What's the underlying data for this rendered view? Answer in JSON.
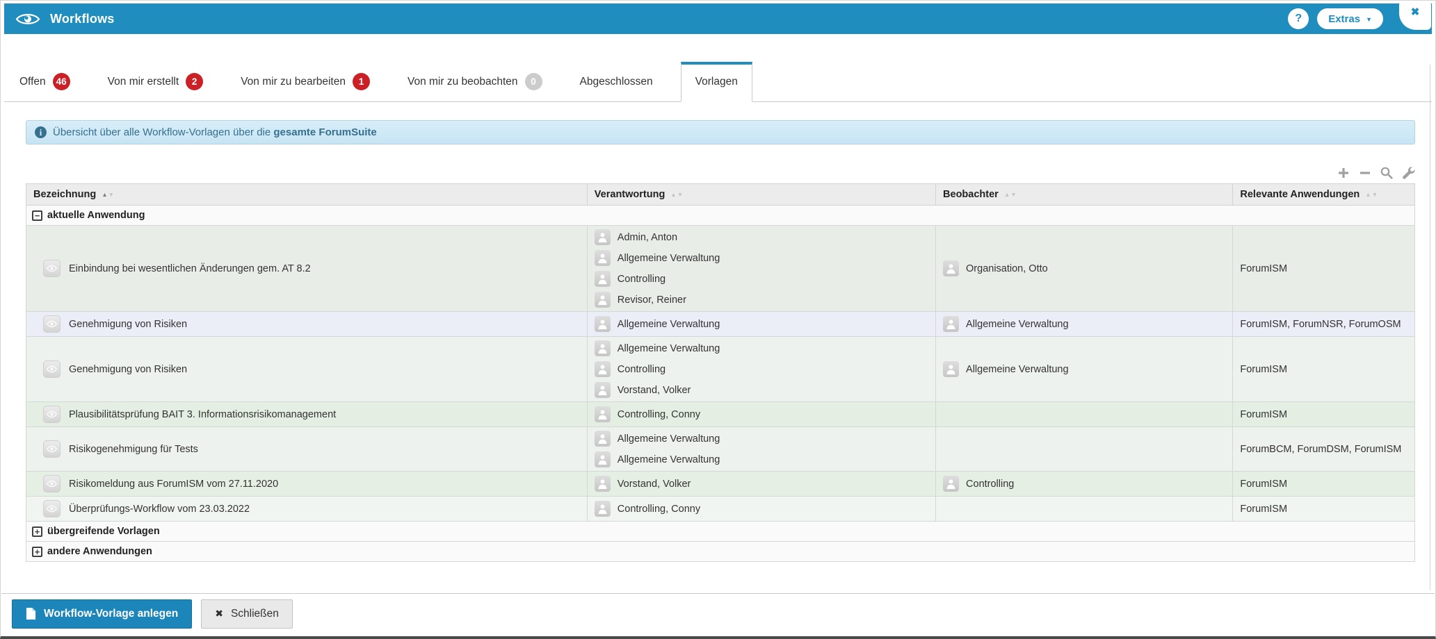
{
  "colors": {
    "header_blue": "#1f8dbe",
    "badge_red": "#cb2026",
    "badge_gray": "#cccccc",
    "banner_text": "#35708e",
    "button_blue": "#1c86ba"
  },
  "header": {
    "title": "Workflows",
    "title_icon": "eye-icon",
    "help_label": "?",
    "extras_label": "Extras",
    "close_label": "✖"
  },
  "tabs": [
    {
      "label": "Offen",
      "badge": "46",
      "badge_type": "red",
      "active": false
    },
    {
      "label": "Von mir erstellt",
      "badge": "2",
      "badge_type": "red",
      "active": false
    },
    {
      "label": "Von mir zu bearbeiten",
      "badge": "1",
      "badge_type": "red",
      "active": false
    },
    {
      "label": "Von mir zu beobachten",
      "badge": "0",
      "badge_type": "gray",
      "active": false
    },
    {
      "label": "Abgeschlossen",
      "badge": null,
      "active": false
    },
    {
      "label": "Vorlagen",
      "badge": null,
      "active": true
    }
  ],
  "info_banner": {
    "icon": "info-icon",
    "text_regular": "Übersicht über alle Workflow-Vorlagen über die ",
    "text_bold": "gesamte ForumSuite"
  },
  "toolbar_icons": [
    "plus-icon",
    "minus-icon",
    "search-icon",
    "wrench-icon"
  ],
  "table": {
    "columns": [
      "Bezeichnung",
      "Verantwortung",
      "Beobachter",
      "Relevante Anwendungen"
    ],
    "sorted_column": "Bezeichnung",
    "sort_direction": "asc",
    "row_icon": "eye-icon",
    "person_icon": "person-icon",
    "groups": [
      {
        "label": "aktuelle Anwendung",
        "expanded": true,
        "rows": [
          {
            "name": "Einbindung bei wesentlichen Änderungen gem. AT 8.2",
            "responsible": [
              "Admin, Anton",
              "Allgemeine Verwaltung",
              "Controlling",
              "Revisor, Reiner"
            ],
            "observers": [
              "Organisation, Otto"
            ],
            "apps": "ForumISM",
            "tint": "#e8ede8"
          },
          {
            "name": "Genehmigung von Risiken",
            "responsible": [
              "Allgemeine Verwaltung"
            ],
            "observers": [
              "Allgemeine Verwaltung"
            ],
            "apps": "ForumISM, ForumNSR, ForumOSM",
            "tint": "#ebedf7"
          },
          {
            "name": "Genehmigung von Risiken",
            "responsible": [
              "Allgemeine Verwaltung",
              "Controlling",
              "Vorstand, Volker"
            ],
            "observers": [
              "Allgemeine Verwaltung"
            ],
            "apps": "ForumISM",
            "tint": "#eef2ee"
          },
          {
            "name": "Plausibilitätsprüfung BAIT 3. Informationsrisikomanagement",
            "responsible": [
              "Controlling, Conny"
            ],
            "observers": [],
            "apps": "ForumISM",
            "tint": "#e4eee2"
          },
          {
            "name": "Risikogenehmigung für Tests",
            "responsible": [
              "Allgemeine Verwaltung",
              "Allgemeine Verwaltung"
            ],
            "observers": [],
            "apps": "ForumBCM, ForumDSM, ForumISM",
            "tint": "#eef2ee"
          },
          {
            "name": "Risikomeldung aus ForumISM vom 27.11.2020",
            "responsible": [
              "Vorstand, Volker"
            ],
            "observers": [
              "Controlling"
            ],
            "apps": "ForumISM",
            "tint": "#e6efe3"
          },
          {
            "name": "Überprüfungs-Workflow vom 23.03.2022",
            "responsible": [
              "Controlling, Conny"
            ],
            "observers": [],
            "apps": "ForumISM",
            "tint": "#f1f5f1"
          }
        ]
      },
      {
        "label": "übergreifende Vorlagen",
        "expanded": false,
        "rows": []
      },
      {
        "label": "andere Anwendungen",
        "expanded": false,
        "rows": []
      }
    ]
  },
  "footer": {
    "create_label": "Workflow-Vorlage anlegen",
    "create_icon": "document-icon",
    "close_label": "Schließen",
    "close_icon": "x-icon"
  }
}
